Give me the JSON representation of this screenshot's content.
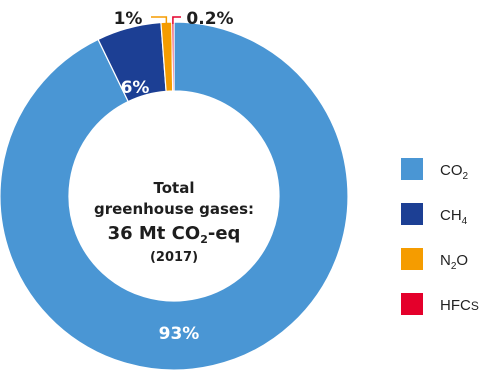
{
  "chart_data": {
    "type": "pie",
    "donut": true,
    "categories": [
      "CO2",
      "CH4",
      "N2O",
      "HFCs"
    ],
    "values": [
      93,
      6,
      1,
      0.2
    ],
    "data_labels": [
      "93%",
      "6%",
      "1%",
      "0.2%"
    ],
    "legend": [
      {
        "base": "CO",
        "sub": "2",
        "rest": ""
      },
      {
        "base": "CH",
        "sub": "4",
        "rest": ""
      },
      {
        "base": "N",
        "sub": "2",
        "rest": "O"
      },
      {
        "base": "HFC",
        "sub": "",
        "rest": "S"
      }
    ],
    "legend_position": "right",
    "colors": [
      "#4a96d4",
      "#1c3f94",
      "#f59c00",
      "#e4002b"
    ],
    "center": {
      "line1": "Total",
      "line2": "greenhouse gases:",
      "line3_main": "36 Mt CO",
      "line3_sub": "2",
      "line3_end": "-eq",
      "line4": "(2017)"
    }
  }
}
